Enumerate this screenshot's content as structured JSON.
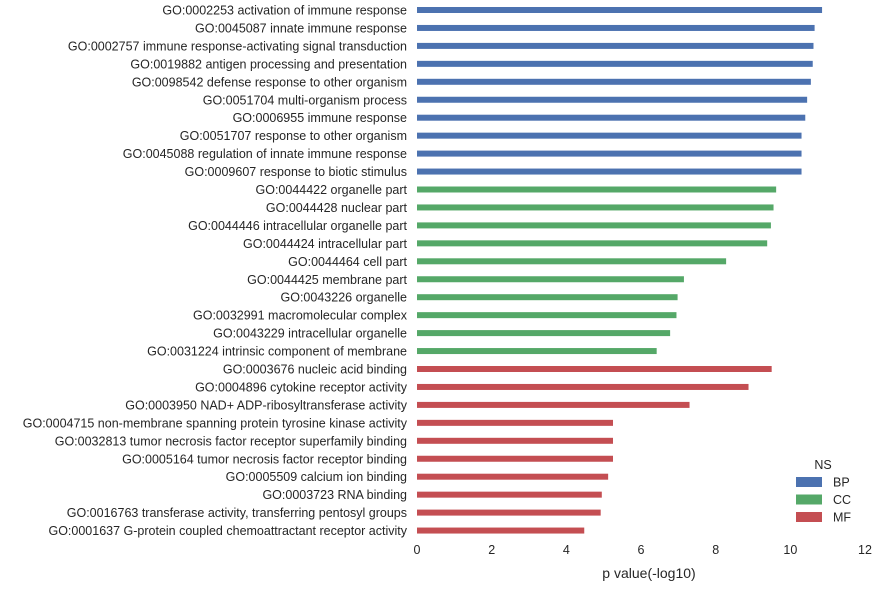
{
  "chart_data": {
    "type": "bar",
    "orientation": "horizontal",
    "xlabel": "p value(-log10)",
    "ylabel": "",
    "xlim": [
      0,
      12
    ],
    "xticks": [
      0,
      2,
      4,
      6,
      8,
      10,
      12
    ],
    "grid": false,
    "legend": {
      "title": "NS",
      "placement": "bottom-right",
      "entries": [
        "BP",
        "CC",
        "MF"
      ]
    },
    "colors": {
      "BP": "#4c72b0",
      "CC": "#55a868",
      "MF": "#c44e52"
    },
    "categories": [
      "GO:0002253 activation of immune response",
      "GO:0045087 innate immune response",
      "GO:0002757 immune response-activating signal transduction",
      "GO:0019882 antigen processing and presentation",
      "GO:0098542 defense response to other organism",
      "GO:0051704 multi-organism process",
      "GO:0006955 immune response",
      "GO:0051707 response to other organism",
      "GO:0045088 regulation of innate immune response",
      "GO:0009607 response to biotic stimulus",
      "GO:0044422 organelle part",
      "GO:0044428 nuclear part",
      "GO:0044446 intracellular organelle part",
      "GO:0044424 intracellular part",
      "GO:0044464 cell part",
      "GO:0044425 membrane part",
      "GO:0043226 organelle",
      "GO:0032991 macromolecular complex",
      "GO:0043229 intracellular organelle",
      "GO:0031224 intrinsic component of membrane",
      "GO:0003676 nucleic acid binding",
      "GO:0004896 cytokine receptor activity",
      "GO:0003950 NAD+ ADP-ribosyltransferase activity",
      "GO:0004715 non-membrane spanning protein tyrosine kinase activity",
      "GO:0032813 tumor necrosis factor receptor superfamily binding",
      "GO:0005164 tumor necrosis factor receptor binding",
      "GO:0005509 calcium ion binding",
      "GO:0003723 RNA binding",
      "GO:0016763 transferase activity, transferring pentosyl groups",
      "GO:0001637 G-protein coupled chemoattractant receptor activity"
    ],
    "series": [
      {
        "name": "BP",
        "values": [
          10.85,
          10.65,
          10.62,
          10.6,
          10.55,
          10.45,
          10.4,
          10.3,
          10.3,
          10.3,
          null,
          null,
          null,
          null,
          null,
          null,
          null,
          null,
          null,
          null,
          null,
          null,
          null,
          null,
          null,
          null,
          null,
          null,
          null,
          null
        ]
      },
      {
        "name": "CC",
        "values": [
          null,
          null,
          null,
          null,
          null,
          null,
          null,
          null,
          null,
          null,
          9.62,
          9.55,
          9.48,
          9.38,
          8.28,
          7.15,
          6.98,
          6.95,
          6.78,
          6.42,
          null,
          null,
          null,
          null,
          null,
          null,
          null,
          null,
          null,
          null
        ]
      },
      {
        "name": "MF",
        "values": [
          null,
          null,
          null,
          null,
          null,
          null,
          null,
          null,
          null,
          null,
          null,
          null,
          null,
          null,
          null,
          null,
          null,
          null,
          null,
          null,
          9.5,
          8.88,
          7.3,
          5.25,
          5.25,
          5.25,
          5.12,
          4.95,
          4.92,
          4.48
        ]
      }
    ]
  }
}
